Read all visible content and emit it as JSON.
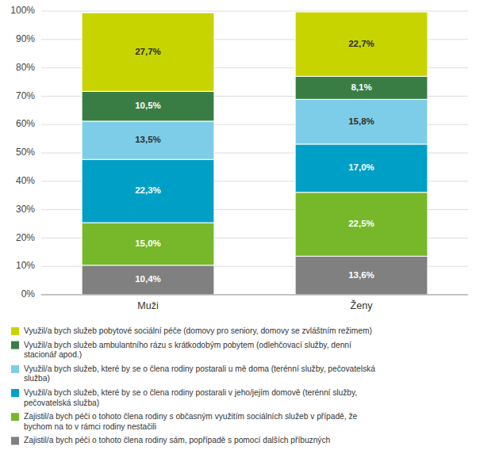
{
  "chart_data": {
    "type": "bar",
    "stacked": true,
    "data_labels": true,
    "grid": true,
    "legend": "bottom",
    "categories": [
      "Muži",
      "Ženy"
    ],
    "series": [
      {
        "name": "Využil/a bych služeb pobytové sociální péče (domovy pro seniory, domovy se zvláštním režimem)",
        "color": "#c8d400",
        "values": [
          27.7,
          22.7
        ],
        "value_labels": [
          "27,7%",
          "22,7%"
        ]
      },
      {
        "name": "Využil/a bych služeb ambulantního rázu s krátkodobým pobytem (odlehčovací služby, denní\nstacionář apod.)",
        "color": "#3a7d44",
        "values": [
          10.5,
          8.1
        ],
        "value_labels": [
          "10,5%",
          "8,1%"
        ]
      },
      {
        "name": "Využil/a bych služeb, které by se o člena rodiny postarali u mě doma (terénní služby, pečovatelská\nslužba)",
        "color": "#7ecde8",
        "values": [
          13.5,
          15.8
        ],
        "value_labels": [
          "13,5%",
          "15,8%"
        ]
      },
      {
        "name": "Využil/a bych služeb, které by se o člena rodiny postarali v jeho/jejím domově (terénní služby,\npečovatelská služba)",
        "color": "#00a0c6",
        "values": [
          22.3,
          17.0
        ],
        "value_labels": [
          "22,3%",
          "17,0%"
        ]
      },
      {
        "name": "Zajistil/a bych péči o tohoto člena rodiny s občasným využitím sociálních služeb v případě, že\nbychom na to v rámci rodiny nestačili",
        "color": "#76b82a",
        "values": [
          15.0,
          22.5
        ],
        "value_labels": [
          "15,0%",
          "22,5%"
        ]
      },
      {
        "name": "Zajistil/a bych péči o tohoto člena rodiny sám, popřípadě s pomocí dalších příbuzných",
        "color": "#808080",
        "values": [
          10.4,
          13.6
        ],
        "value_labels": [
          "10,4%",
          "13,6%"
        ]
      }
    ],
    "ylim": [
      0,
      100
    ],
    "yticks": [
      {
        "value": 0,
        "label": "0%"
      },
      {
        "value": 10,
        "label": "10%"
      },
      {
        "value": 20,
        "label": "20%"
      },
      {
        "value": 30,
        "label": "30%"
      },
      {
        "value": 40,
        "label": "40%"
      },
      {
        "value": 50,
        "label": "50%"
      },
      {
        "value": 60,
        "label": "60%"
      },
      {
        "value": 70,
        "label": "70%"
      },
      {
        "value": 80,
        "label": "80%"
      },
      {
        "value": 90,
        "label": "90%"
      },
      {
        "value": 100,
        "label": "100%"
      }
    ]
  }
}
